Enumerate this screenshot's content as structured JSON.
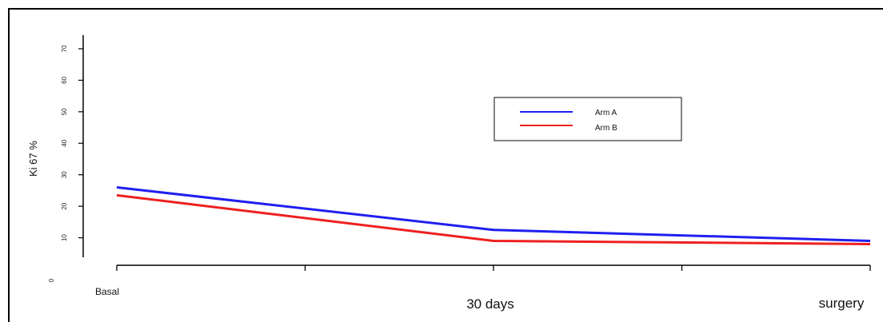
{
  "chart_data": {
    "type": "line",
    "ylabel": "Ki 67   %",
    "y_ticks": [
      "0",
      "10",
      "20",
      "30",
      "40",
      "50",
      "60",
      "70"
    ],
    "ylim": [
      0,
      75
    ],
    "categories": [
      "Basal",
      "30 days",
      "surgery"
    ],
    "series": [
      {
        "name": "Arm A",
        "color": "#1f1ff0",
        "values": [
          26,
          12.5,
          9
        ]
      },
      {
        "name": "Arm B",
        "color": "#ee2020",
        "values": [
          23.5,
          9,
          8
        ]
      }
    ],
    "legend_position": "upper-center-right",
    "grid": false
  }
}
